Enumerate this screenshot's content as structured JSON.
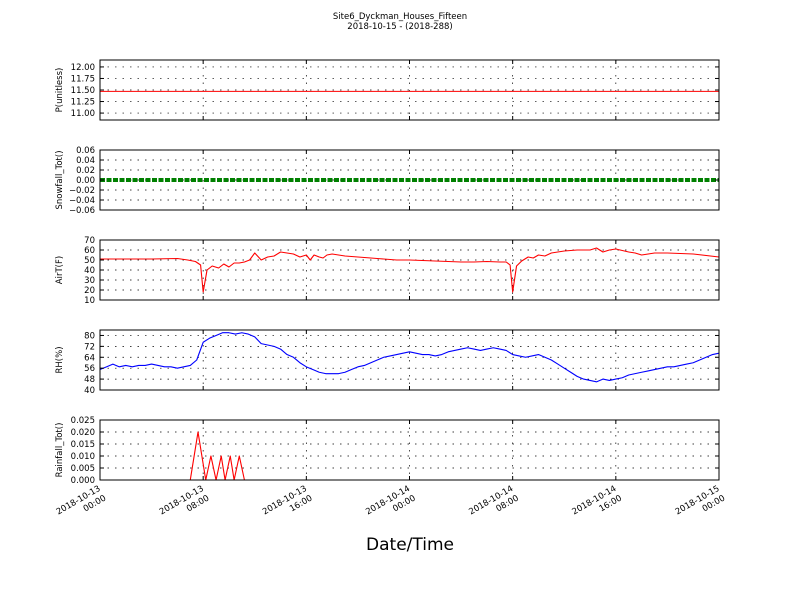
{
  "figure": {
    "title": "Site6_Dyckman_Houses_Fifteen",
    "subtitle": "2018-10-15 - (2018-288)",
    "xlabel": "Date/Time"
  },
  "chart_data": [
    {
      "type": "line",
      "ylabel": "P(unitless)",
      "ylim": [
        10.85,
        12.15
      ],
      "yticks": [
        "12.00",
        "11.75",
        "11.50",
        "11.25",
        "11.00"
      ],
      "ytick_values": [
        12.0,
        11.75,
        11.5,
        11.25,
        11.0
      ],
      "grid": true,
      "color": "#ff0000",
      "x_hours": [
        0,
        48
      ],
      "values": [
        11.47,
        11.47
      ]
    },
    {
      "type": "line",
      "ylabel": "Snowfall_Tot()",
      "ylim": [
        -0.06,
        0.06
      ],
      "yticks": [
        "0.06",
        "0.04",
        "0.02",
        "0.00",
        "−0.02",
        "−0.04",
        "−0.06"
      ],
      "ytick_values": [
        0.06,
        0.04,
        0.02,
        0.0,
        -0.02,
        -0.04,
        -0.06
      ],
      "grid": true,
      "color": "#008000",
      "style": "thick",
      "x_hours": [
        0,
        48
      ],
      "values": [
        0,
        0
      ]
    },
    {
      "type": "line",
      "ylabel": "AirT(F)",
      "ylim": [
        10,
        70
      ],
      "yticks": [
        "70",
        "60",
        "50",
        "40",
        "30",
        "20",
        "10"
      ],
      "ytick_values": [
        70,
        60,
        50,
        40,
        30,
        20,
        10
      ],
      "grid": true,
      "color": "#ff0000",
      "x_hours": [
        0,
        2,
        4,
        6,
        6.8,
        7.4,
        7.8,
        8.0,
        8.3,
        8.7,
        9.2,
        9.6,
        10.0,
        10.4,
        10.8,
        11.2,
        11.6,
        12,
        12.5,
        13,
        13.5,
        14,
        14.5,
        15,
        15.5,
        16,
        16.3,
        16.6,
        17,
        17.3,
        17.6,
        18,
        18.5,
        19,
        20,
        21,
        22,
        23,
        24,
        26,
        28,
        29,
        30,
        31,
        31.5,
        31.8,
        32.0,
        32.3,
        32.7,
        33.2,
        33.6,
        34.0,
        34.5,
        35,
        35.5,
        36,
        37,
        38,
        38.5,
        39,
        39.5,
        40,
        41,
        41.5,
        42,
        43,
        44,
        46,
        48
      ],
      "values": [
        51,
        51,
        51,
        51.5,
        50,
        48.5,
        45,
        18,
        40,
        44,
        42,
        46,
        43,
        47,
        47,
        48,
        50,
        57,
        50,
        53,
        54,
        58,
        57,
        56,
        53,
        55,
        50,
        55,
        53,
        52,
        55,
        56,
        55,
        54,
        53,
        52,
        51,
        50,
        50,
        49,
        48,
        48,
        48.5,
        48,
        48,
        45,
        18,
        44,
        49,
        53,
        52,
        55,
        54,
        57,
        58,
        59,
        60,
        60,
        62,
        58,
        60,
        61,
        58,
        57,
        55,
        57,
        57,
        56,
        53
      ]
    },
    {
      "type": "line",
      "ylabel": "RH(%)",
      "ylim": [
        40,
        84
      ],
      "yticks": [
        "80",
        "72",
        "64",
        "56",
        "48",
        "40"
      ],
      "ytick_values": [
        80,
        72,
        64,
        56,
        48,
        40
      ],
      "grid": true,
      "color": "#0000ff",
      "x_hours": [
        0,
        0.5,
        1,
        1.5,
        2,
        2.5,
        3,
        3.5,
        4,
        4.5,
        5,
        5.5,
        6,
        6.5,
        7,
        7.5,
        8,
        8.5,
        9,
        9.5,
        10,
        10.5,
        11,
        11.5,
        12,
        12.5,
        13,
        13.5,
        14,
        14.5,
        15,
        15.5,
        16,
        16.5,
        17,
        17.5,
        18,
        18.5,
        19,
        19.5,
        20,
        20.5,
        21,
        21.5,
        22,
        22.5,
        23,
        23.5,
        24,
        24.5,
        25,
        25.5,
        26,
        26.5,
        27,
        27.5,
        28,
        28.5,
        29,
        29.5,
        30,
        30.5,
        31,
        31.5,
        32,
        32.5,
        33,
        33.5,
        34,
        34.5,
        35,
        35.5,
        36,
        36.5,
        37,
        37.5,
        38,
        38.5,
        39,
        39.5,
        40,
        40.5,
        41,
        41.5,
        42,
        42.5,
        43,
        43.5,
        44,
        44.5,
        45,
        45.5,
        46,
        46.5,
        47,
        47.5,
        48
      ],
      "values": [
        55,
        57,
        59,
        57,
        58,
        57,
        58,
        58,
        59,
        58,
        57,
        57,
        56,
        57,
        58,
        62,
        75,
        78,
        80,
        82,
        82,
        81,
        82,
        81,
        79,
        74,
        73,
        72,
        70,
        66,
        64,
        60,
        57,
        55,
        53,
        52,
        52,
        52,
        53,
        55,
        57,
        58,
        60,
        62,
        64,
        65,
        66,
        67,
        68,
        67,
        66,
        66,
        65,
        66,
        68,
        69,
        70,
        71,
        70,
        69,
        70,
        71,
        70,
        69,
        66,
        65,
        64,
        65,
        66,
        64,
        62,
        59,
        56,
        53,
        50,
        48,
        47,
        46,
        48,
        47,
        48,
        49,
        51,
        52,
        53,
        54,
        55,
        56,
        57,
        57,
        58,
        59,
        60,
        62,
        64,
        66,
        67
      ]
    },
    {
      "type": "line",
      "ylabel": "Rainfall_Tot()",
      "ylim": [
        0,
        0.025
      ],
      "yticks": [
        "0.025",
        "0.020",
        "0.015",
        "0.010",
        "0.005",
        "0.000"
      ],
      "ytick_values": [
        0.025,
        0.02,
        0.015,
        0.01,
        0.005,
        0.0
      ],
      "grid": true,
      "color": "#ff0000",
      "x_hours": [
        0,
        7.0,
        7.6,
        8.2,
        8.6,
        9.0,
        9.4,
        9.7,
        10.1,
        10.4,
        10.8,
        11.2,
        11.6,
        12.0,
        48
      ],
      "values": [
        0,
        0,
        0.02,
        0,
        0.01,
        0,
        0.01,
        0,
        0.01,
        0,
        0.01,
        0,
        0,
        0,
        0
      ]
    }
  ],
  "xaxis": {
    "tick_hours": [
      0,
      8,
      16,
      24,
      32,
      40,
      48
    ],
    "tick_labels": [
      [
        "2018-10-13",
        "00:00"
      ],
      [
        "2018-10-13",
        "08:00"
      ],
      [
        "2018-10-13",
        "16:00"
      ],
      [
        "2018-10-14",
        "00:00"
      ],
      [
        "2018-10-14",
        "08:00"
      ],
      [
        "2018-10-14",
        "16:00"
      ],
      [
        "2018-10-15",
        "00:00"
      ]
    ]
  }
}
